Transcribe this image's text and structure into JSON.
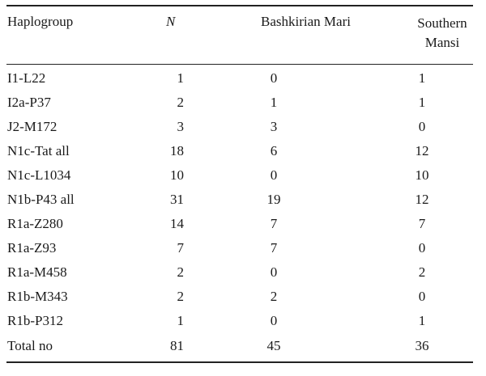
{
  "table": {
    "headers": {
      "haplogroup": "Haplogroup",
      "n": "N",
      "bashkirian_mari": "Bashkirian Mari",
      "southern_mansi": "Southern Mansi"
    },
    "rows": [
      {
        "haplogroup": "I1-L22",
        "n": "1",
        "bashkirian_mari": "0",
        "southern_mansi": "1"
      },
      {
        "haplogroup": "I2a-P37",
        "n": "2",
        "bashkirian_mari": "1",
        "southern_mansi": "1"
      },
      {
        "haplogroup": "J2-M172",
        "n": "3",
        "bashkirian_mari": "3",
        "southern_mansi": "0"
      },
      {
        "haplogroup": "N1c-Tat all",
        "n": "18",
        "bashkirian_mari": "6",
        "southern_mansi": "12"
      },
      {
        "haplogroup": "N1c-L1034",
        "n": "10",
        "bashkirian_mari": "0",
        "southern_mansi": "10"
      },
      {
        "haplogroup": "N1b-P43 all",
        "n": "31",
        "bashkirian_mari": "19",
        "southern_mansi": "12"
      },
      {
        "haplogroup": "R1a-Z280",
        "n": "14",
        "bashkirian_mari": "7",
        "southern_mansi": "7"
      },
      {
        "haplogroup": "R1a-Z93",
        "n": "7",
        "bashkirian_mari": "7",
        "southern_mansi": "0"
      },
      {
        "haplogroup": "R1a-M458",
        "n": "2",
        "bashkirian_mari": "0",
        "southern_mansi": "2"
      },
      {
        "haplogroup": "R1b-M343",
        "n": "2",
        "bashkirian_mari": "2",
        "southern_mansi": "0"
      },
      {
        "haplogroup": "R1b-P312",
        "n": "1",
        "bashkirian_mari": "0",
        "southern_mansi": "1"
      }
    ],
    "total": {
      "haplogroup": "Total no",
      "n": "81",
      "bashkirian_mari": "45",
      "southern_mansi": "36"
    }
  }
}
